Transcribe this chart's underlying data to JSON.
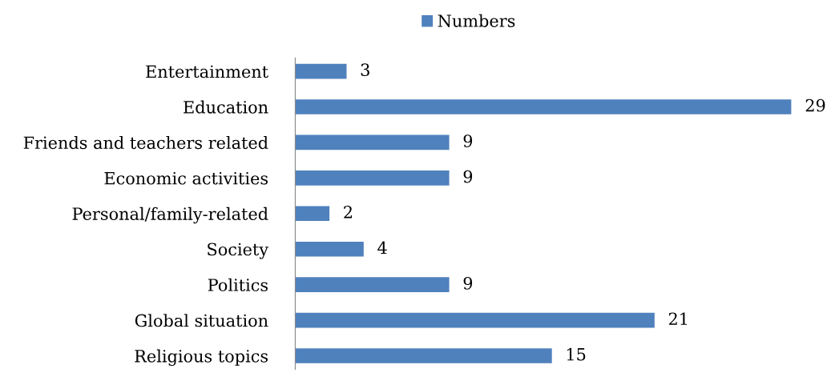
{
  "chart_data": {
    "type": "bar",
    "orientation": "horizontal",
    "categories": [
      "Entertainment",
      "Education",
      "Friends and teachers related",
      "Economic activities",
      "Personal/family-related",
      "Society",
      "Politics",
      "Global situation",
      "Religious topics"
    ],
    "series": [
      {
        "name": "Numbers",
        "color": "#4f81bd",
        "values": [
          3,
          29,
          9,
          9,
          2,
          4,
          9,
          21,
          15
        ]
      }
    ],
    "data_labels": true,
    "legend": "top",
    "grid": false,
    "tick_labels": "y"
  }
}
